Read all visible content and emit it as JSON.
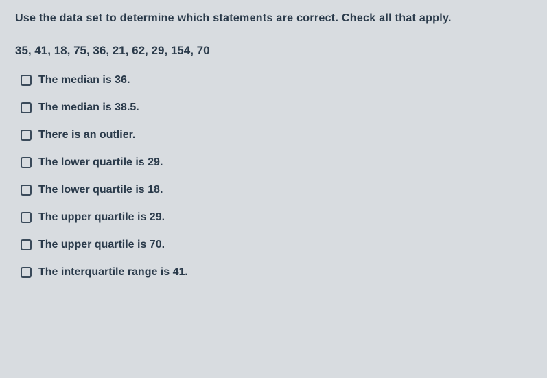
{
  "instruction": "Use the data set to determine which statements are correct. Check all that apply.",
  "data_set": "35, 41, 18, 75, 36, 21, 62, 29, 154, 70",
  "options": [
    {
      "label": "The median is 36."
    },
    {
      "label": "The median is 38.5."
    },
    {
      "label": "There is an outlier."
    },
    {
      "label": "The lower quartile is 29."
    },
    {
      "label": "The lower quartile is 18."
    },
    {
      "label": "The upper quartile is 29."
    },
    {
      "label": "The upper quartile is 70."
    },
    {
      "label": "The interquartile range is 41."
    }
  ],
  "colors": {
    "background": "#d8dce0",
    "text": "#2a3a4a",
    "checkbox_border": "#3a4a5a"
  },
  "typography": {
    "instruction_fontsize": 16,
    "data_set_fontsize": 17,
    "option_fontsize": 16,
    "font_family": "Arial, sans-serif",
    "font_weight": "bold"
  }
}
